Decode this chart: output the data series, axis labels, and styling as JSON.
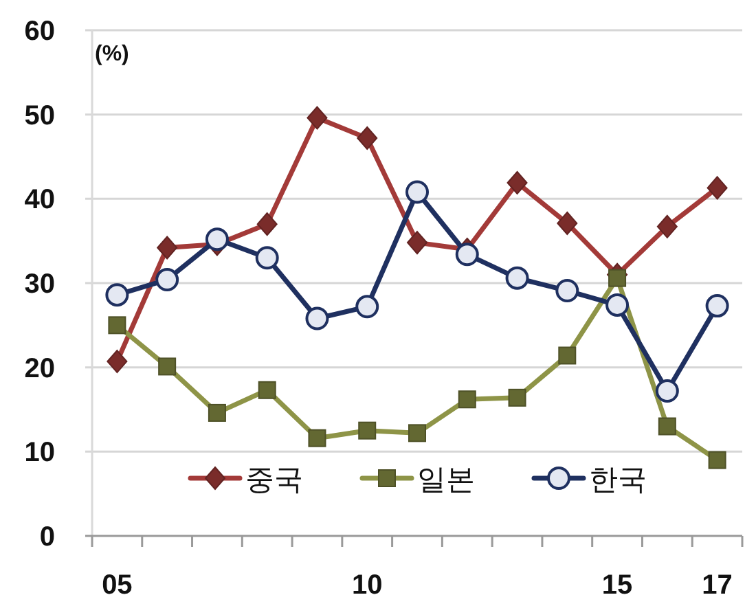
{
  "chart_data": {
    "type": "line",
    "ylabel": "(%)",
    "categories": [
      "05",
      null,
      null,
      null,
      null,
      "10",
      null,
      null,
      null,
      null,
      "15",
      null,
      "17"
    ],
    "ylim": [
      0,
      60
    ],
    "yticks": [
      0,
      10,
      20,
      30,
      40,
      50,
      60
    ],
    "grid": "y",
    "legend": "bottom",
    "series": [
      {
        "name": "중국",
        "color": "#a33a38",
        "marker": "diamond",
        "values": [
          20.7,
          34.2,
          34.6,
          37.0,
          49.6,
          47.2,
          34.8,
          34.0,
          41.9,
          37.1,
          31.0,
          36.7,
          41.3
        ]
      },
      {
        "name": "일본",
        "color": "#8e9447",
        "marker": "square",
        "values": [
          25.0,
          20.1,
          14.6,
          17.3,
          11.6,
          12.5,
          12.2,
          16.2,
          16.4,
          21.4,
          30.6,
          13.0,
          9.0
        ]
      },
      {
        "name": "한국",
        "color": "#1f3060",
        "marker": "circle",
        "values": [
          28.6,
          30.4,
          35.2,
          33.0,
          25.8,
          27.2,
          40.8,
          33.4,
          30.6,
          29.1,
          27.4,
          17.2,
          27.3
        ]
      }
    ]
  }
}
